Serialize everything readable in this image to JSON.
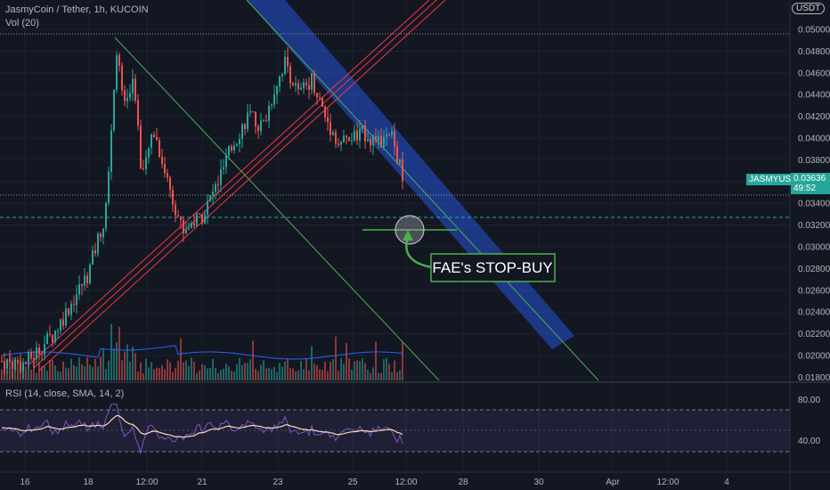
{
  "header": {
    "symbol_line": "JasmyCoin / Tether, 1h, KUCOIN",
    "volume_label": "Vol (20)",
    "currency_button": "USDT"
  },
  "price_tag": {
    "symbol": "JASMYUSDT",
    "price": "0.03636",
    "countdown": "49:52"
  },
  "annotation": {
    "text": "FAE's STOP-BUY",
    "color": "#22ab94"
  },
  "rsi": {
    "label": "RSI (14, close, SMA, 14, 2)",
    "ticks": [
      "80.00",
      "40.00"
    ],
    "upper": 80,
    "lower": 20
  },
  "colors": {
    "background": "#131722",
    "up": "#26a69a",
    "down": "#ef5350",
    "trendline_green": "#4caf50",
    "channel_red": "#f23645",
    "channel_blue": "#2962ff",
    "rsi_band": "#7e57c2"
  },
  "chart_data": {
    "type": "candlestick",
    "symbol": "JASMYUSDT",
    "price_axis_ticks": [
      "0.05000",
      "0.04800",
      "0.04600",
      "0.04400",
      "0.04200",
      "0.04000",
      "0.03800",
      "0.03600",
      "0.03400",
      "0.03200",
      "0.03000",
      "0.02800",
      "0.02600",
      "0.02400",
      "0.02200",
      "0.02000",
      "0.01800"
    ],
    "time_axis_ticks": [
      "16",
      "18",
      "12:00",
      "21",
      "23",
      "25",
      "12:00",
      "28",
      "30",
      "Apr",
      "12:00",
      "4"
    ],
    "key_levels": [
      0.0496,
      0.0365,
      0.0327
    ],
    "last_price": 0.03636,
    "approx_path": [
      {
        "t": "16",
        "price": 0.0195
      },
      {
        "t": "17",
        "price": 0.022
      },
      {
        "t": "18",
        "price": 0.029
      },
      {
        "t": "19",
        "price": 0.049
      },
      {
        "t": "20",
        "price": 0.038
      },
      {
        "t": "21",
        "price": 0.0315
      },
      {
        "t": "22",
        "price": 0.041
      },
      {
        "t": "23",
        "price": 0.047
      },
      {
        "t": "24",
        "price": 0.042
      },
      {
        "t": "25",
        "price": 0.0395
      },
      {
        "t": "26",
        "price": 0.0364
      }
    ]
  }
}
